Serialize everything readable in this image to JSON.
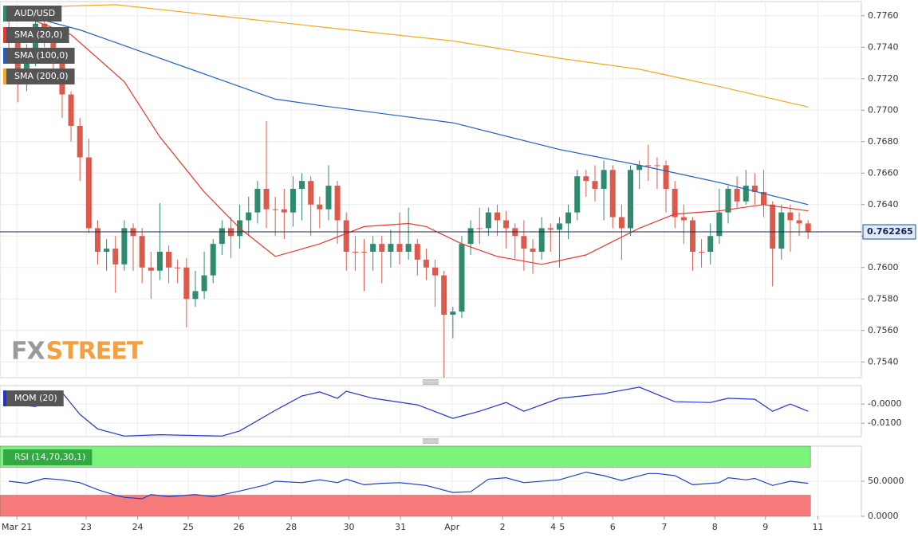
{
  "chart_data": [
    {
      "type": "candlestick",
      "symbol": "AUD/USD",
      "watermark": [
        "FX",
        "STREET"
      ],
      "up_color": "#2e8b6e",
      "down_color": "#dc5a4b",
      "xlim": [
        -1,
        96
      ],
      "ylim": [
        0.753,
        0.7769
      ],
      "grid": true,
      "yticks": [
        {
          "value": 0.776,
          "label": "0.7760"
        },
        {
          "value": 0.774,
          "label": "0.7740"
        },
        {
          "value": 0.772,
          "label": "0.7720"
        },
        {
          "value": 0.77,
          "label": "0.7700"
        },
        {
          "value": 0.768,
          "label": "0.7680"
        },
        {
          "value": 0.766,
          "label": "0.7660"
        },
        {
          "value": 0.764,
          "label": "0.7640"
        },
        {
          "value": 0.762,
          "label": "0.7620"
        },
        {
          "value": 0.76,
          "label": "0.7600"
        },
        {
          "value": 0.758,
          "label": "0.7580"
        },
        {
          "value": 0.756,
          "label": "0.7560"
        },
        {
          "value": 0.754,
          "label": "0.7540"
        }
      ],
      "last_price": {
        "value": 0.762265,
        "label": "0.762265"
      },
      "candles": [
        [
          0.775,
          0.7757,
          0.7738,
          0.7745
        ],
        [
          0.7745,
          0.7748,
          0.7705,
          0.772
        ],
        [
          0.772,
          0.7742,
          0.7712,
          0.7735
        ],
        [
          0.7735,
          0.776,
          0.7728,
          0.7755
        ],
        [
          0.7755,
          0.776,
          0.774,
          0.7748
        ],
        [
          0.7748,
          0.775,
          0.7718,
          0.773
        ],
        [
          0.773,
          0.7732,
          0.7695,
          0.771
        ],
        [
          0.771,
          0.7712,
          0.768,
          0.769
        ],
        [
          0.769,
          0.7695,
          0.7655,
          0.767
        ],
        [
          0.767,
          0.7682,
          0.7622,
          0.7625
        ],
        [
          0.7625,
          0.763,
          0.7602,
          0.761
        ],
        [
          0.761,
          0.7618,
          0.7598,
          0.7612
        ],
        [
          0.7612,
          0.762,
          0.7584,
          0.7602
        ],
        [
          0.7602,
          0.763,
          0.7598,
          0.7625
        ],
        [
          0.7625,
          0.7628,
          0.7598,
          0.762
        ],
        [
          0.762,
          0.7625,
          0.759,
          0.76
        ],
        [
          0.76,
          0.761,
          0.758,
          0.7598
        ],
        [
          0.7598,
          0.7641,
          0.7592,
          0.761
        ],
        [
          0.761,
          0.7614,
          0.759,
          0.76
        ],
        [
          0.76,
          0.7605,
          0.759,
          0.76
        ],
        [
          0.76,
          0.7606,
          0.7562,
          0.758
        ],
        [
          0.758,
          0.7598,
          0.7575,
          0.7585
        ],
        [
          0.7585,
          0.761,
          0.758,
          0.7595
        ],
        [
          0.7595,
          0.7618,
          0.759,
          0.7615
        ],
        [
          0.7615,
          0.763,
          0.7608,
          0.7625
        ],
        [
          0.7625,
          0.7632,
          0.7606,
          0.762
        ],
        [
          0.762,
          0.764,
          0.7612,
          0.763
        ],
        [
          0.763,
          0.7645,
          0.762,
          0.7635
        ],
        [
          0.7635,
          0.7655,
          0.7628,
          0.765
        ],
        [
          0.765,
          0.7693,
          0.7625,
          0.7637
        ],
        [
          0.7637,
          0.7645,
          0.762,
          0.7637
        ],
        [
          0.7637,
          0.765,
          0.7618,
          0.7635
        ],
        [
          0.7635,
          0.7658,
          0.7626,
          0.765
        ],
        [
          0.765,
          0.766,
          0.763,
          0.7655
        ],
        [
          0.7655,
          0.7658,
          0.762,
          0.764
        ],
        [
          0.764,
          0.7645,
          0.7625,
          0.7637
        ],
        [
          0.7637,
          0.7665,
          0.763,
          0.7652
        ],
        [
          0.7652,
          0.7655,
          0.7615,
          0.763
        ],
        [
          0.763,
          0.7635,
          0.7598,
          0.761
        ],
        [
          0.761,
          0.762,
          0.7598,
          0.761
        ],
        [
          0.761,
          0.7618,
          0.7585,
          0.761
        ],
        [
          0.761,
          0.762,
          0.7598,
          0.7615
        ],
        [
          0.7615,
          0.762,
          0.759,
          0.761
        ],
        [
          0.761,
          0.7624,
          0.76,
          0.7615
        ],
        [
          0.7615,
          0.7635,
          0.7602,
          0.761
        ],
        [
          0.761,
          0.7638,
          0.7605,
          0.7615
        ],
        [
          0.7615,
          0.7618,
          0.7595,
          0.7605
        ],
        [
          0.7605,
          0.7612,
          0.7592,
          0.76
        ],
        [
          0.76,
          0.7605,
          0.7575,
          0.7595
        ],
        [
          0.7595,
          0.7598,
          0.753,
          0.757
        ],
        [
          0.757,
          0.7575,
          0.7555,
          0.7572
        ],
        [
          0.7572,
          0.762,
          0.7568,
          0.7615
        ],
        [
          0.7615,
          0.763,
          0.7608,
          0.7625
        ],
        [
          0.7625,
          0.7638,
          0.7615,
          0.7625
        ],
        [
          0.7625,
          0.7638,
          0.762,
          0.7635
        ],
        [
          0.7635,
          0.764,
          0.762,
          0.763
        ],
        [
          0.763,
          0.7636,
          0.7612,
          0.7625
        ],
        [
          0.7625,
          0.7628,
          0.7605,
          0.762
        ],
        [
          0.762,
          0.763,
          0.7598,
          0.7612
        ],
        [
          0.7612,
          0.7618,
          0.7596,
          0.761
        ],
        [
          0.761,
          0.7632,
          0.7605,
          0.7625
        ],
        [
          0.7625,
          0.7628,
          0.761,
          0.7624
        ],
        [
          0.7624,
          0.7632,
          0.76,
          0.7628
        ],
        [
          0.7628,
          0.764,
          0.7618,
          0.7635
        ],
        [
          0.7635,
          0.7662,
          0.763,
          0.7658
        ],
        [
          0.7658,
          0.7662,
          0.7645,
          0.7655
        ],
        [
          0.7655,
          0.7665,
          0.7642,
          0.765
        ],
        [
          0.765,
          0.7668,
          0.763,
          0.7662
        ],
        [
          0.7662,
          0.7665,
          0.7625,
          0.7632
        ],
        [
          0.7632,
          0.764,
          0.7605,
          0.7625
        ],
        [
          0.7625,
          0.7665,
          0.762,
          0.7662
        ],
        [
          0.7662,
          0.7668,
          0.765,
          0.7665
        ],
        [
          0.7665,
          0.7678,
          0.7655,
          0.7665
        ],
        [
          0.7665,
          0.767,
          0.765,
          0.7665
        ],
        [
          0.7665,
          0.7668,
          0.7635,
          0.765
        ],
        [
          0.765,
          0.7655,
          0.7625,
          0.7632
        ],
        [
          0.7632,
          0.764,
          0.7615,
          0.763
        ],
        [
          0.763,
          0.7632,
          0.7598,
          0.761
        ],
        [
          0.761,
          0.7618,
          0.76,
          0.761
        ],
        [
          0.761,
          0.7628,
          0.7602,
          0.762
        ],
        [
          0.762,
          0.765,
          0.7615,
          0.7635
        ],
        [
          0.7635,
          0.7652,
          0.7628,
          0.765
        ],
        [
          0.765,
          0.7658,
          0.7638,
          0.7642
        ],
        [
          0.7642,
          0.7662,
          0.764,
          0.7652
        ],
        [
          0.7652,
          0.766,
          0.764,
          0.7648
        ],
        [
          0.7648,
          0.7662,
          0.7632,
          0.764
        ],
        [
          0.764,
          0.7642,
          0.7588,
          0.7612
        ],
        [
          0.7612,
          0.764,
          0.7605,
          0.7635
        ],
        [
          0.7635,
          0.764,
          0.761,
          0.763
        ],
        [
          0.763,
          0.7635,
          0.762,
          0.7628
        ],
        [
          0.7628,
          0.763,
          0.7618,
          0.7623
        ]
      ],
      "series": [
        {
          "name": "SMA (20,0)",
          "color": "#e8372c",
          "x": [
            0,
            7,
            13,
            17,
            22,
            26,
            30,
            35,
            40,
            45,
            47,
            51,
            55,
            60,
            65,
            71,
            75,
            80,
            85,
            90
          ],
          "values": [
            0.7763,
            0.7748,
            0.7718,
            0.7683,
            0.7648,
            0.7625,
            0.7607,
            0.7615,
            0.7626,
            0.7628,
            0.7626,
            0.7615,
            0.7607,
            0.7602,
            0.7608,
            0.7625,
            0.7634,
            0.7636,
            0.764,
            0.7636
          ]
        },
        {
          "name": "SMA (100,0)",
          "color": "#1f5fbf",
          "x": [
            0,
            8,
            17,
            30,
            35,
            50,
            62,
            71,
            80,
            90
          ],
          "values": [
            0.7763,
            0.7751,
            0.7733,
            0.7707,
            0.7703,
            0.7692,
            0.7675,
            0.7665,
            0.7654,
            0.764
          ]
        },
        {
          "name": "SMA (200,0)",
          "color": "#f5a623",
          "x": [
            0,
            12,
            35,
            50,
            62,
            71,
            80,
            90
          ],
          "values": [
            0.7765,
            0.7767,
            0.7753,
            0.7744,
            0.7733,
            0.7726,
            0.7715,
            0.7702
          ]
        }
      ]
    },
    {
      "type": "line",
      "xlim": [
        -1,
        96
      ],
      "ylim": [
        -0.017,
        0.0096
      ],
      "grid": true,
      "yticks": [
        {
          "value": 0,
          "label": "-0.0000"
        },
        {
          "value": -0.01,
          "label": "-0.0100"
        }
      ],
      "series": [
        {
          "name": "MOM (20)",
          "color": "#2333cc",
          "x": [
            0,
            3,
            6,
            8,
            10,
            13,
            17,
            24,
            26,
            30,
            33,
            35,
            37,
            38,
            41,
            46,
            50,
            53,
            56,
            58,
            62,
            67,
            71,
            73,
            75,
            79,
            81,
            84,
            86,
            88,
            90
          ],
          "values": [
            0,
            -0.0013,
            0.006,
            -0.0054,
            -0.013,
            -0.0167,
            -0.016,
            -0.0167,
            -0.014,
            -0.0033,
            0.0042,
            0.0063,
            0.003,
            0.0067,
            0.003,
            -0.0004,
            -0.0075,
            -0.0038,
            0.0008,
            -0.0038,
            0.003,
            0.0054,
            0.0088,
            0.005,
            0.0012,
            0.0008,
            0.003,
            0.0025,
            -0.0038,
            0,
            -0.0038
          ]
        }
      ]
    },
    {
      "type": "line",
      "xlim": [
        -1,
        96
      ],
      "ylim": [
        0,
        100
      ],
      "grid": true,
      "yticks": [
        {
          "value": 50,
          "label": "50.0000"
        },
        {
          "value": 0,
          "label": "0.0000"
        }
      ],
      "overbought": 70,
      "oversold": 30,
      "overbought_color": "#7cf47c",
      "oversold_color": "#f77a7a",
      "series": [
        {
          "name": "RSI (14,70,30,1)",
          "color": "#2040c0",
          "x": [
            0,
            2,
            4,
            6,
            8,
            10,
            12,
            13,
            15,
            16,
            18,
            21,
            23,
            26,
            29,
            30,
            33,
            35,
            37,
            38,
            40,
            42,
            44,
            47,
            50,
            52,
            54,
            56,
            58,
            62,
            65,
            67,
            69,
            72,
            73,
            75,
            77,
            80,
            81,
            83,
            84,
            86,
            88,
            90
          ],
          "values": [
            50,
            47,
            54,
            52,
            48,
            38,
            30,
            27,
            25,
            31,
            28,
            31,
            28,
            36,
            45,
            50,
            48,
            52,
            48,
            53,
            45,
            47,
            48,
            44,
            34,
            35,
            53,
            55,
            48,
            52,
            63,
            58,
            51,
            61,
            61,
            58,
            45,
            48,
            55,
            52,
            54,
            44,
            50,
            47
          ]
        }
      ],
      "xticks": [
        {
          "value": 0.9,
          "label": "Mar 21"
        },
        {
          "value": 8.7,
          "label": "23"
        },
        {
          "value": 14.5,
          "label": "24"
        },
        {
          "value": 20.2,
          "label": "25"
        },
        {
          "value": 25.9,
          "label": "26"
        },
        {
          "value": 31.8,
          "label": "28"
        },
        {
          "value": 38.3,
          "label": "30"
        },
        {
          "value": 44.1,
          "label": "31"
        },
        {
          "value": 49.9,
          "label": "Apr"
        },
        {
          "value": 55.6,
          "label": "2"
        },
        {
          "value": 61.3,
          "label": "4"
        },
        {
          "value": 62.3,
          "label": "5"
        },
        {
          "value": 68,
          "label": "6"
        },
        {
          "value": 73.8,
          "label": "7"
        },
        {
          "value": 79.5,
          "label": "8"
        },
        {
          "value": 85.2,
          "label": "9"
        },
        {
          "value": 91.1,
          "label": "11"
        }
      ]
    }
  ]
}
